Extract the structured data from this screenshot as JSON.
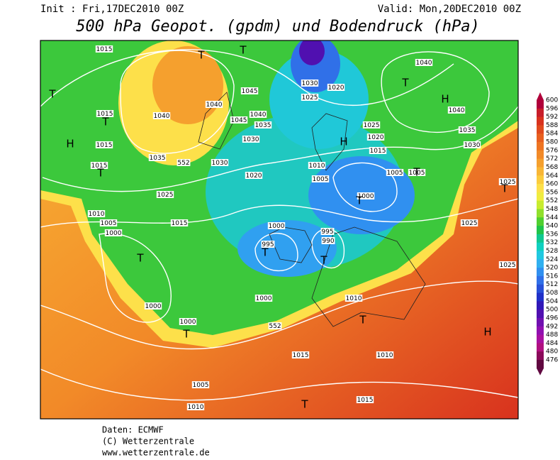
{
  "header": {
    "init": "Init : Fri,17DEC2010 00Z",
    "valid": "Valid: Mon,20DEC2010 00Z",
    "title": "500 hPa Geopot. (gpdm) und Bodendruck (hPa)"
  },
  "colorbar": {
    "labels": [
      600,
      596,
      592,
      588,
      584,
      580,
      576,
      572,
      568,
      564,
      560,
      556,
      552,
      548,
      544,
      540,
      536,
      532,
      528,
      524,
      520,
      516,
      512,
      508,
      504,
      500,
      496,
      492,
      488,
      484,
      480,
      476
    ],
    "colors": [
      "#b0003a",
      "#c81e2a",
      "#d8321e",
      "#e04a1e",
      "#e86020",
      "#ee7422",
      "#f28a28",
      "#f5a02e",
      "#f8b636",
      "#fbcc3e",
      "#fde04a",
      "#f0ec40",
      "#c8ec30",
      "#90e02c",
      "#50d030",
      "#20c44a",
      "#10c890",
      "#10d0c0",
      "#20c8e0",
      "#30b0f0",
      "#3090f0",
      "#3070e8",
      "#2850d8",
      "#2030c8",
      "#3018b8",
      "#5010b0",
      "#7010b0",
      "#9010b0",
      "#a810a0",
      "#b01080",
      "#8a0a5a",
      "#600840"
    ]
  },
  "map": {
    "isobar_labels": [
      "1015",
      "1015",
      "1015",
      "1015",
      "1040",
      "1035",
      "552",
      "1030",
      "1045",
      "1040",
      "1035",
      "1045",
      "1040",
      "1030",
      "1020",
      "1030",
      "1025",
      "1020",
      "1040",
      "1040",
      "1035",
      "1030",
      "1025",
      "1020",
      "1015",
      "1010",
      "1005",
      "1005",
      "1005",
      "1000",
      "1025",
      "1015",
      "1010",
      "1005",
      "1000",
      "1000",
      "995",
      "990",
      "995",
      "1025",
      "1025",
      "1025",
      "1000",
      "1000",
      "552",
      "1000",
      "1010",
      "1015",
      "1010",
      "1005",
      "1010",
      "1015"
    ],
    "pressure_centers": [
      "T",
      "T",
      "H",
      "T",
      "T",
      "T",
      "T",
      "H",
      "H",
      "T",
      "T",
      "T",
      "T",
      "T",
      "T",
      "T",
      "H",
      "T",
      "T"
    ]
  },
  "footer": [
    "Daten: ECMWF",
    "(C) Wetterzentrale",
    "www.wetterzentrale.de"
  ]
}
